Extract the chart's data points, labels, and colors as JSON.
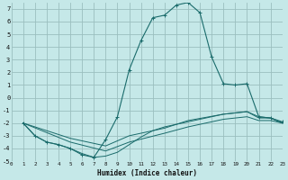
{
  "bg_color": "#c5e8e8",
  "grid_color": "#9bbfbf",
  "line_color": "#1a6b6b",
  "xlabel": "Humidex (Indice chaleur)",
  "xlim": [
    0,
    23
  ],
  "ylim": [
    -5,
    7.5
  ],
  "xticks": [
    0,
    1,
    2,
    3,
    4,
    5,
    6,
    7,
    8,
    9,
    10,
    11,
    12,
    13,
    14,
    15,
    16,
    17,
    18,
    19,
    20,
    21,
    22,
    23
  ],
  "yticks": [
    -5,
    -4,
    -3,
    -2,
    -1,
    0,
    1,
    2,
    3,
    4,
    5,
    6,
    7
  ],
  "curve_main_x": [
    1,
    2,
    3,
    4,
    5,
    6,
    7,
    8,
    9,
    10,
    11,
    12,
    13,
    14,
    15,
    16,
    17,
    18,
    19,
    20,
    21,
    22,
    23
  ],
  "curve_main_y": [
    -2,
    -3,
    -3.5,
    -3.7,
    -4.0,
    -4.5,
    -4.7,
    -3.3,
    -1.5,
    2.2,
    4.5,
    6.3,
    6.5,
    7.3,
    7.5,
    6.7,
    3.2,
    1.1,
    1.0,
    1.1,
    -1.5,
    -1.6,
    -1.9
  ],
  "curve_flat1_x": [
    1,
    2,
    3,
    4,
    5,
    6,
    7,
    8,
    9,
    10,
    11,
    12,
    13,
    14,
    15,
    16,
    17,
    18,
    19,
    20,
    21,
    22,
    23
  ],
  "curve_flat1_y": [
    -2,
    -3,
    -3.5,
    -3.7,
    -4.0,
    -4.4,
    -4.7,
    -4.6,
    -4.3,
    -3.7,
    -3.1,
    -2.6,
    -2.3,
    -2.1,
    -1.9,
    -1.7,
    -1.5,
    -1.3,
    -1.2,
    -1.1,
    -1.6,
    -1.6,
    -2.0
  ],
  "curve_flat2_x": [
    1,
    5,
    8,
    10,
    13,
    15,
    18,
    20,
    21,
    22,
    23
  ],
  "curve_flat2_y": [
    -2,
    -3.2,
    -3.8,
    -3.0,
    -2.4,
    -1.8,
    -1.3,
    -1.1,
    -1.5,
    -1.6,
    -2.0
  ],
  "curve_flat3_x": [
    1,
    5,
    8,
    10,
    13,
    15,
    18,
    20,
    21,
    22,
    23
  ],
  "curve_flat3_y": [
    -2,
    -3.5,
    -4.2,
    -3.5,
    -2.8,
    -2.3,
    -1.7,
    -1.5,
    -1.8,
    -1.8,
    -2.0
  ]
}
